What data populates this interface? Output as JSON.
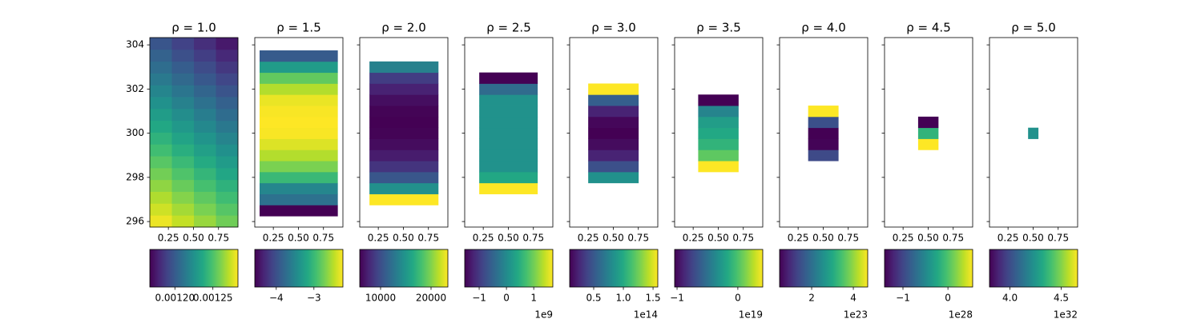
{
  "chart_data": {
    "type": "heatmap",
    "colormap": "viridis",
    "xlim": [
      0.065,
      0.944
    ],
    "ylim": [
      295.75,
      304.33
    ],
    "xticks": [
      0.25,
      {
        "value": 0.5,
        "label": "0.50"
      },
      0.75
    ],
    "yticks": [
      296,
      298,
      300,
      302,
      304
    ],
    "panels": [
      {
        "title": "ρ = 1.0",
        "extent": [
          0.065,
          0.944,
          295.75,
          304.33
        ],
        "clim": [
          0.001167,
          0.001283
        ],
        "cbar_ticks": [
          {
            "value": 0.0012,
            "label": "0.00120"
          },
          {
            "value": 0.00125,
            "label": "0.00125"
          }
        ],
        "values": [
          [
            0.00128,
            0.0012725,
            0.001265,
            0.0012575
          ],
          [
            0.0012745,
            0.001267,
            0.0012595,
            0.001252
          ],
          [
            0.001269,
            0.0012615,
            0.001254,
            0.0012465
          ],
          [
            0.0012635,
            0.001256,
            0.0012485,
            0.001241
          ],
          [
            0.001258,
            0.0012505,
            0.001243,
            0.0012355
          ],
          [
            0.0012525,
            0.001245,
            0.0012375,
            0.00123
          ],
          [
            0.001247,
            0.0012395,
            0.001232,
            0.0012245
          ],
          [
            0.0012415,
            0.001234,
            0.0012265,
            0.001219
          ],
          [
            0.001236,
            0.0012285,
            0.001221,
            0.0012135
          ],
          [
            0.0012305,
            0.001223,
            0.0012155,
            0.001208
          ],
          [
            0.001225,
            0.0012175,
            0.00121,
            0.0012025
          ],
          [
            0.0012195,
            0.001212,
            0.0012045,
            0.001197
          ],
          [
            0.001214,
            0.0012065,
            0.001199,
            0.0011915
          ],
          [
            0.0012085,
            0.001201,
            0.0011935,
            0.001186
          ],
          [
            0.001203,
            0.0011955,
            0.001188,
            0.0011805
          ],
          [
            0.0011975,
            0.00119,
            0.0011825,
            0.001175
          ]
        ]
      },
      {
        "title": "ρ = 1.5",
        "extent": [
          0.113,
          0.89,
          296.25,
          303.75
        ],
        "clim": [
          -4.57,
          -2.23
        ],
        "cbar_ticks": [
          {
            "value": -4,
            "label": "−4"
          },
          {
            "value": -3,
            "label": "−3"
          }
        ],
        "values": [
          [
            -4.57
          ],
          [
            -3.7
          ],
          [
            -3.5
          ],
          [
            -3.0
          ],
          [
            -2.7
          ],
          [
            -2.5
          ],
          [
            -2.35
          ],
          [
            -2.25
          ],
          [
            -2.23
          ],
          [
            -2.25
          ],
          [
            -2.3
          ],
          [
            -2.5
          ],
          [
            -2.8
          ],
          [
            -3.3
          ],
          [
            -3.9
          ]
        ]
      },
      {
        "title": "ρ = 2.0",
        "extent": [
          0.162,
          0.847,
          296.75,
          303.25
        ],
        "clim": [
          5873,
          23333
        ],
        "cbar_ticks": [
          10000,
          20000
        ],
        "values": [
          [
            23333
          ],
          [
            14500
          ],
          [
            10500
          ],
          [
            8500
          ],
          [
            7200
          ],
          [
            6400
          ],
          [
            6000
          ],
          [
            5873
          ],
          [
            6000
          ],
          [
            6500
          ],
          [
            7500
          ],
          [
            9000
          ],
          [
            13500
          ]
        ]
      },
      {
        "title": "ρ = 2.5",
        "extent": [
          0.21,
          0.79,
          297.25,
          302.75
        ],
        "clim": [
          -1530000000,
          1700000000
        ],
        "cbar_ticks": [
          {
            "value": -1000000000,
            "label": "−1"
          },
          0,
          {
            "value": 1000000000,
            "label": "1"
          }
        ],
        "offset_text": "1e9",
        "values": [
          [
            1700000000
          ],
          [
            400000000
          ],
          [
            100000000
          ],
          [
            100000000
          ],
          [
            100000000
          ],
          [
            100000000
          ],
          [
            100000000
          ],
          [
            100000000
          ],
          [
            100000000
          ],
          [
            -400000000
          ],
          [
            -1530000000
          ]
        ]
      },
      {
        "title": "ρ = 3.0",
        "extent": [
          0.25,
          0.75,
          297.75,
          302.25
        ],
        "clim": [
          9500000000000.0,
          158000000000000.0
        ],
        "cbar_ticks": [
          {
            "value": 50000000000000.0,
            "label": "0.5"
          },
          {
            "value": 100000000000000.0,
            "label": "1.0"
          },
          {
            "value": 150000000000000.0,
            "label": "1.5"
          }
        ],
        "offset_text": "1e14",
        "values": [
          [
            84000000000000.0
          ],
          [
            46000000000000.0
          ],
          [
            24000000000000.0
          ],
          [
            14000000000000.0
          ],
          [
            9500000000000.0
          ],
          [
            12000000000000.0
          ],
          [
            24000000000000.0
          ],
          [
            54000000000000.0
          ],
          [
            158000000000000.0
          ]
        ]
      },
      {
        "title": "ρ = 3.5",
        "extent": [
          0.3,
          0.7,
          298.25,
          301.75
        ],
        "clim": [
          -1.04e+19,
          4.1e+18
        ],
        "cbar_ticks": [
          {
            "value": -1e+19,
            "label": "−1"
          },
          0
        ],
        "offset_text": "1e19",
        "values": [
          [
            4.1e+18
          ],
          [
            4.5e+17
          ],
          [
            -1e+18
          ],
          [
            -1.7e+18
          ],
          [
            -2.4e+18
          ],
          [
            -3.9e+18
          ],
          [
            -1.04e+19
          ]
        ]
      },
      {
        "title": "ρ = 4.0",
        "extent": [
          0.35,
          0.65,
          298.75,
          301.25
        ],
        "clim": [
          4.6e+22,
          4.69e+23
        ],
        "cbar_ticks": [
          {
            "value": 2e+23,
            "label": "2"
          },
          {
            "value": 4e+23,
            "label": "4"
          }
        ],
        "offset_text": "1e23",
        "values": [
          [
            1.4e+23
          ],
          [
            5e+22
          ],
          [
            4.6e+22
          ],
          [
            1.5e+23
          ],
          [
            4.69e+23
          ]
        ]
      },
      {
        "title": "ρ = 4.5",
        "extent": [
          0.4,
          0.6,
          299.25,
          300.75
        ],
        "clim": [
          -1.41e+28,
          5.5e+27
        ],
        "cbar_ticks": [
          {
            "value": -1e+28,
            "label": "−1"
          },
          0
        ],
        "offset_text": "1e28",
        "values": [
          [
            5.5e+27
          ],
          [
            -1.4e+27
          ],
          [
            -1.41e+28
          ]
        ]
      },
      {
        "title": "ρ = 5.0",
        "extent": [
          0.45,
          0.55,
          299.75,
          300.25
        ],
        "clim": [
          3.8e+32,
          4.66e+32
        ],
        "cbar_ticks": [
          {
            "value": 4e+32,
            "label": "4.0"
          },
          {
            "value": 4.5e+32,
            "label": "4.5"
          }
        ],
        "offset_text": "1e32",
        "values": [
          [
            4.23e+32
          ]
        ]
      }
    ]
  }
}
